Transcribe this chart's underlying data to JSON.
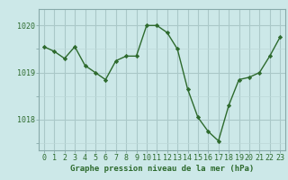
{
  "x": [
    0,
    1,
    2,
    3,
    4,
    5,
    6,
    7,
    8,
    9,
    10,
    11,
    12,
    13,
    14,
    15,
    16,
    17,
    18,
    19,
    20,
    21,
    22,
    23
  ],
  "y": [
    1019.55,
    1019.45,
    1019.3,
    1019.55,
    1019.15,
    1019.0,
    1018.85,
    1019.25,
    1019.35,
    1019.35,
    1020.0,
    1020.0,
    1019.85,
    1019.5,
    1018.65,
    1018.05,
    1017.75,
    1017.55,
    1018.3,
    1018.85,
    1018.9,
    1019.0,
    1019.35,
    1019.75
  ],
  "line_color": "#2d6a2d",
  "marker": "D",
  "marker_size": 2.2,
  "bg_color": "#cce8e8",
  "grid_color_major": "#aac8c8",
  "grid_color_minor": "#bdd8d8",
  "xlabel": "Graphe pression niveau de la mer (hPa)",
  "xlabel_fontsize": 6.5,
  "tick_fontsize": 6.0,
  "ylim": [
    1017.35,
    1020.35
  ],
  "yticks": [
    1018,
    1019,
    1020
  ],
  "xticks": [
    0,
    1,
    2,
    3,
    4,
    5,
    6,
    7,
    8,
    9,
    10,
    11,
    12,
    13,
    14,
    15,
    16,
    17,
    18,
    19,
    20,
    21,
    22,
    23
  ],
  "linewidth": 1.0,
  "spine_color": "#88aaaa"
}
